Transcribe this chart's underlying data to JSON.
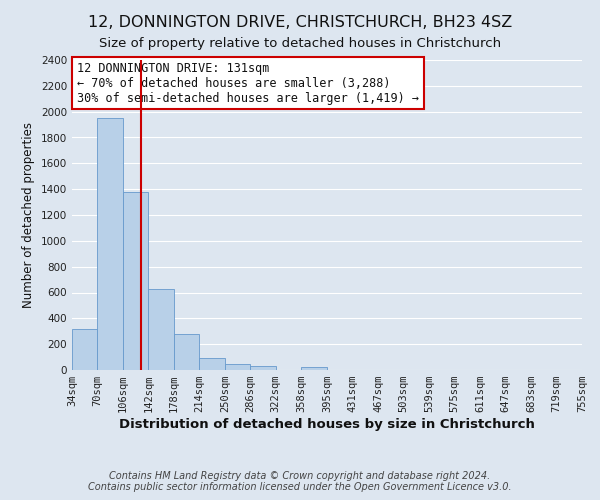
{
  "title": "12, DONNINGTON DRIVE, CHRISTCHURCH, BH23 4SZ",
  "subtitle": "Size of property relative to detached houses in Christchurch",
  "xlabel": "Distribution of detached houses by size in Christchurch",
  "ylabel": "Number of detached properties",
  "bin_labels": [
    "34sqm",
    "70sqm",
    "106sqm",
    "142sqm",
    "178sqm",
    "214sqm",
    "250sqm",
    "286sqm",
    "322sqm",
    "358sqm",
    "395sqm",
    "431sqm",
    "467sqm",
    "503sqm",
    "539sqm",
    "575sqm",
    "611sqm",
    "647sqm",
    "683sqm",
    "719sqm",
    "755sqm"
  ],
  "bar_values": [
    320,
    1950,
    1380,
    630,
    275,
    95,
    45,
    28,
    0,
    25,
    0,
    0,
    0,
    0,
    0,
    0,
    0,
    0,
    0,
    0
  ],
  "bar_color": "#b8d0e8",
  "bar_edge_color": "#6699cc",
  "background_color": "#dde6f0",
  "grid_color": "#ffffff",
  "red_line_x": 131,
  "annotation_title": "12 DONNINGTON DRIVE: 131sqm",
  "annotation_line1": "← 70% of detached houses are smaller (3,288)",
  "annotation_line2": "30% of semi-detached houses are larger (1,419) →",
  "annotation_box_color": "#ffffff",
  "annotation_box_edge": "#cc0000",
  "ylim": [
    0,
    2400
  ],
  "yticks": [
    0,
    200,
    400,
    600,
    800,
    1000,
    1200,
    1400,
    1600,
    1800,
    2000,
    2200,
    2400
  ],
  "footer1": "Contains HM Land Registry data © Crown copyright and database right 2024.",
  "footer2": "Contains public sector information licensed under the Open Government Licence v3.0.",
  "title_fontsize": 11.5,
  "subtitle_fontsize": 9.5,
  "xlabel_fontsize": 9.5,
  "ylabel_fontsize": 8.5,
  "tick_fontsize": 7.5,
  "footer_fontsize": 7,
  "annotation_fontsize": 8.5
}
